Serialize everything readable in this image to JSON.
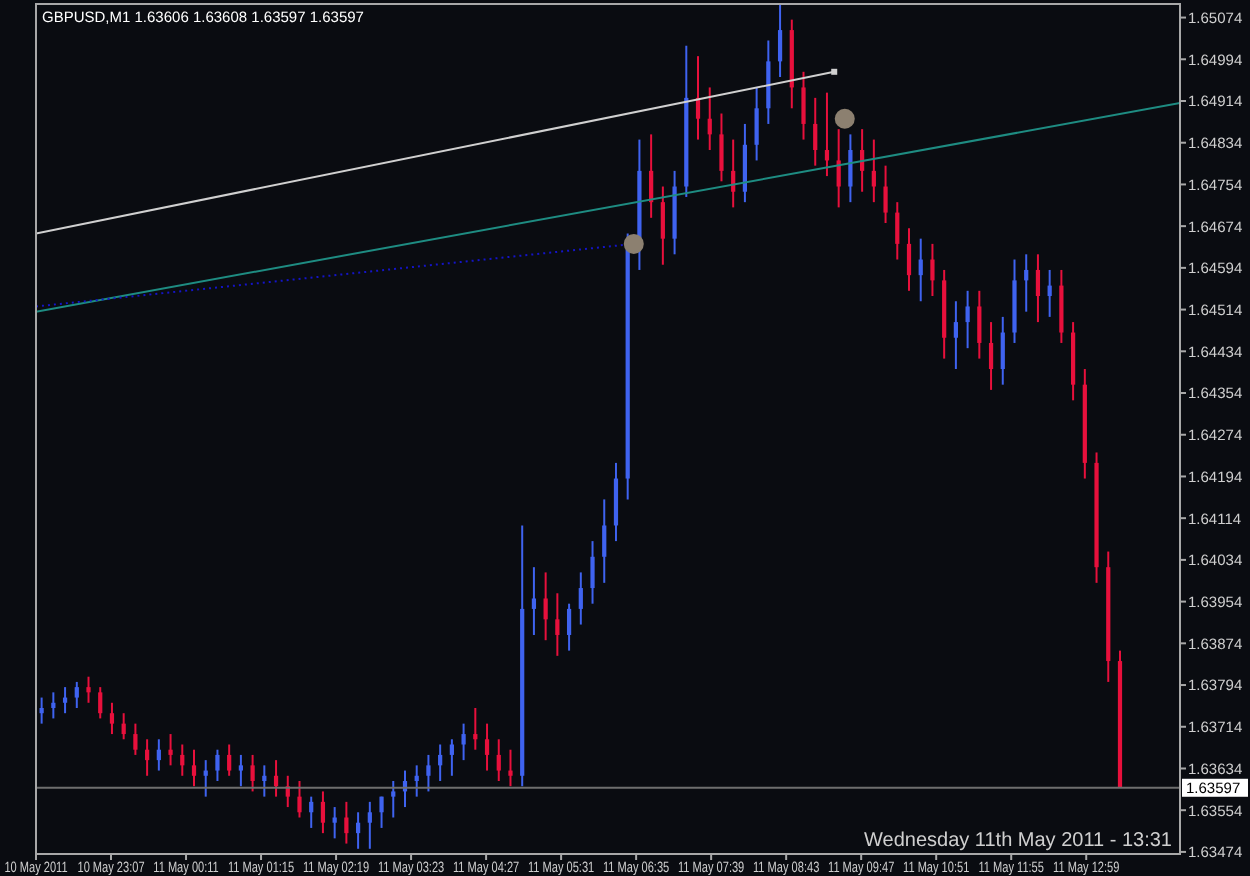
{
  "chart_data": {
    "type": "candlestick",
    "title": "GBPUSD,M1 1.63606 1.63608 1.63597 1.63597",
    "annotations": [
      "Wednesday 11th May 2011 - 13:31",
      "10 May 2011"
    ],
    "x": [
      "2011-05-10T22:08",
      "2011-05-10T22:18",
      "2011-05-10T22:28",
      "2011-05-10T22:38",
      "2011-05-10T22:48",
      "2011-05-10T22:58",
      "2011-05-10T23:08",
      "2011-05-10T23:18",
      "2011-05-10T23:28",
      "2011-05-10T23:38",
      "2011-05-10T23:48",
      "2011-05-10T23:58",
      "2011-05-11T00:08",
      "2011-05-11T00:18",
      "2011-05-11T00:28",
      "2011-05-11T00:38",
      "2011-05-11T00:48",
      "2011-05-11T00:58",
      "2011-05-11T01:08",
      "2011-05-11T01:18",
      "2011-05-11T01:28",
      "2011-05-11T01:38",
      "2011-05-11T01:48",
      "2011-05-11T01:58",
      "2011-05-11T02:08",
      "2011-05-11T02:18",
      "2011-05-11T02:28",
      "2011-05-11T02:38",
      "2011-05-11T02:48",
      "2011-05-11T02:58",
      "2011-05-11T03:08",
      "2011-05-11T03:18",
      "2011-05-11T03:28",
      "2011-05-11T03:38",
      "2011-05-11T03:48",
      "2011-05-11T03:58",
      "2011-05-11T04:08",
      "2011-05-11T04:18",
      "2011-05-11T04:28",
      "2011-05-11T04:38",
      "2011-05-11T04:48",
      "2011-05-11T04:58",
      "2011-05-11T05:08",
      "2011-05-11T05:18",
      "2011-05-11T05:28",
      "2011-05-11T05:38",
      "2011-05-11T05:48",
      "2011-05-11T05:58",
      "2011-05-11T06:08",
      "2011-05-11T06:18",
      "2011-05-11T06:28",
      "2011-05-11T06:38",
      "2011-05-11T06:48",
      "2011-05-11T06:58",
      "2011-05-11T07:08",
      "2011-05-11T07:18",
      "2011-05-11T07:28",
      "2011-05-11T07:38",
      "2011-05-11T07:48",
      "2011-05-11T07:58",
      "2011-05-11T08:08",
      "2011-05-11T08:18",
      "2011-05-11T08:28",
      "2011-05-11T08:38",
      "2011-05-11T08:48",
      "2011-05-11T08:58",
      "2011-05-11T09:08",
      "2011-05-11T09:18",
      "2011-05-11T09:28",
      "2011-05-11T09:38",
      "2011-05-11T09:48",
      "2011-05-11T09:58",
      "2011-05-11T10:08",
      "2011-05-11T10:18",
      "2011-05-11T10:28",
      "2011-05-11T10:38",
      "2011-05-11T10:48",
      "2011-05-11T10:58",
      "2011-05-11T11:08",
      "2011-05-11T11:18",
      "2011-05-11T11:28",
      "2011-05-11T11:38",
      "2011-05-11T11:48",
      "2011-05-11T11:58",
      "2011-05-11T12:08",
      "2011-05-11T12:18",
      "2011-05-11T12:28",
      "2011-05-11T12:38",
      "2011-05-11T12:48",
      "2011-05-11T12:58",
      "2011-05-11T13:08",
      "2011-05-11T13:18",
      "2011-05-11T13:28"
    ],
    "ohlc": [
      [
        1.6374,
        1.6377,
        1.6372,
        1.6375
      ],
      [
        1.6375,
        1.6378,
        1.6373,
        1.6376
      ],
      [
        1.6376,
        1.6379,
        1.6374,
        1.6377
      ],
      [
        1.6377,
        1.638,
        1.6375,
        1.6379
      ],
      [
        1.6379,
        1.6381,
        1.6376,
        1.6378
      ],
      [
        1.6378,
        1.6379,
        1.6373,
        1.6374
      ],
      [
        1.6374,
        1.6376,
        1.637,
        1.6372
      ],
      [
        1.6372,
        1.6374,
        1.6369,
        1.637
      ],
      [
        1.637,
        1.6372,
        1.6366,
        1.6367
      ],
      [
        1.6367,
        1.6369,
        1.6362,
        1.6365
      ],
      [
        1.6365,
        1.6369,
        1.6363,
        1.6367
      ],
      [
        1.6367,
        1.637,
        1.6364,
        1.6366
      ],
      [
        1.6366,
        1.6368,
        1.6362,
        1.6364
      ],
      [
        1.6364,
        1.6367,
        1.636,
        1.6362
      ],
      [
        1.6362,
        1.6365,
        1.6358,
        1.6363
      ],
      [
        1.6363,
        1.6367,
        1.6361,
        1.6366
      ],
      [
        1.6366,
        1.6368,
        1.6362,
        1.6363
      ],
      [
        1.6363,
        1.6366,
        1.636,
        1.6364
      ],
      [
        1.6364,
        1.6366,
        1.6359,
        1.6361
      ],
      [
        1.6361,
        1.6364,
        1.6358,
        1.6362
      ],
      [
        1.6362,
        1.6365,
        1.6358,
        1.636
      ],
      [
        1.636,
        1.6362,
        1.6356,
        1.6358
      ],
      [
        1.6358,
        1.6361,
        1.6354,
        1.6355
      ],
      [
        1.6355,
        1.6358,
        1.6352,
        1.6357
      ],
      [
        1.6357,
        1.6359,
        1.6351,
        1.6353
      ],
      [
        1.6353,
        1.6356,
        1.635,
        1.6354
      ],
      [
        1.6354,
        1.6357,
        1.6349,
        1.6351
      ],
      [
        1.6351,
        1.6355,
        1.6348,
        1.6353
      ],
      [
        1.6353,
        1.6357,
        1.6348,
        1.6355
      ],
      [
        1.6355,
        1.6358,
        1.6352,
        1.6358
      ],
      [
        1.6358,
        1.6361,
        1.6354,
        1.6359
      ],
      [
        1.6359,
        1.6363,
        1.6356,
        1.6361
      ],
      [
        1.6361,
        1.6364,
        1.6358,
        1.6362
      ],
      [
        1.6362,
        1.6366,
        1.6359,
        1.6364
      ],
      [
        1.6364,
        1.6368,
        1.6361,
        1.6366
      ],
      [
        1.6366,
        1.6369,
        1.6362,
        1.6368
      ],
      [
        1.6368,
        1.6372,
        1.6365,
        1.637
      ],
      [
        1.637,
        1.6375,
        1.6367,
        1.6369
      ],
      [
        1.6369,
        1.6372,
        1.6363,
        1.6366
      ],
      [
        1.6366,
        1.6369,
        1.6361,
        1.6363
      ],
      [
        1.6363,
        1.6367,
        1.636,
        1.6362
      ],
      [
        1.6362,
        1.641,
        1.636,
        1.6394
      ],
      [
        1.6394,
        1.6402,
        1.6389,
        1.6396
      ],
      [
        1.6396,
        1.6401,
        1.6388,
        1.6392
      ],
      [
        1.6392,
        1.6397,
        1.6385,
        1.6389
      ],
      [
        1.6389,
        1.6395,
        1.6386,
        1.6394
      ],
      [
        1.6394,
        1.6401,
        1.6391,
        1.6398
      ],
      [
        1.6398,
        1.6407,
        1.6395,
        1.6404
      ],
      [
        1.6404,
        1.6415,
        1.6399,
        1.641
      ],
      [
        1.641,
        1.6422,
        1.6407,
        1.6419
      ],
      [
        1.6419,
        1.6466,
        1.6415,
        1.6463
      ],
      [
        1.6463,
        1.6484,
        1.6459,
        1.6478
      ],
      [
        1.6478,
        1.6485,
        1.6469,
        1.6472
      ],
      [
        1.6472,
        1.6475,
        1.646,
        1.6465
      ],
      [
        1.6465,
        1.6478,
        1.6462,
        1.6475
      ],
      [
        1.6475,
        1.6502,
        1.6473,
        1.6492
      ],
      [
        1.6492,
        1.65,
        1.6484,
        1.6488
      ],
      [
        1.6488,
        1.6494,
        1.6482,
        1.6485
      ],
      [
        1.6485,
        1.6489,
        1.6476,
        1.6478
      ],
      [
        1.6478,
        1.6484,
        1.6471,
        1.6474
      ],
      [
        1.6474,
        1.6487,
        1.6472,
        1.6483
      ],
      [
        1.6483,
        1.6494,
        1.648,
        1.649
      ],
      [
        1.649,
        1.6503,
        1.6487,
        1.6499
      ],
      [
        1.6499,
        1.651,
        1.6496,
        1.6505
      ],
      [
        1.6505,
        1.6507,
        1.649,
        1.6494
      ],
      [
        1.6494,
        1.6497,
        1.6484,
        1.6487
      ],
      [
        1.6487,
        1.6492,
        1.6479,
        1.6482
      ],
      [
        1.6482,
        1.6493,
        1.6477,
        1.648
      ],
      [
        1.648,
        1.6486,
        1.6471,
        1.6475
      ],
      [
        1.6475,
        1.6485,
        1.6472,
        1.6482
      ],
      [
        1.6482,
        1.6486,
        1.6474,
        1.6478
      ],
      [
        1.6478,
        1.6484,
        1.6472,
        1.6475
      ],
      [
        1.6475,
        1.6479,
        1.6468,
        1.647
      ],
      [
        1.647,
        1.6472,
        1.6461,
        1.6464
      ],
      [
        1.6464,
        1.6467,
        1.6455,
        1.6458
      ],
      [
        1.6458,
        1.6465,
        1.6453,
        1.6461
      ],
      [
        1.6461,
        1.6464,
        1.6454,
        1.6457
      ],
      [
        1.6457,
        1.6459,
        1.6442,
        1.6446
      ],
      [
        1.6446,
        1.6453,
        1.644,
        1.6449
      ],
      [
        1.6449,
        1.6455,
        1.6444,
        1.6452
      ],
      [
        1.6452,
        1.6455,
        1.6442,
        1.6445
      ],
      [
        1.6445,
        1.6449,
        1.6436,
        1.644
      ],
      [
        1.644,
        1.645,
        1.6437,
        1.6447
      ],
      [
        1.6447,
        1.6461,
        1.6445,
        1.6457
      ],
      [
        1.6457,
        1.6462,
        1.6451,
        1.6459
      ],
      [
        1.6459,
        1.6462,
        1.6449,
        1.6454
      ],
      [
        1.6454,
        1.6459,
        1.645,
        1.6456
      ],
      [
        1.6456,
        1.6459,
        1.6445,
        1.6447
      ],
      [
        1.6447,
        1.6449,
        1.6434,
        1.6437
      ],
      [
        1.6437,
        1.644,
        1.6419,
        1.6422
      ],
      [
        1.6422,
        1.6424,
        1.6399,
        1.6402
      ],
      [
        1.6402,
        1.6405,
        1.638,
        1.6384
      ],
      [
        1.6384,
        1.6386,
        1.63597,
        1.63597
      ]
    ],
    "colors": [
      "#3f63f0",
      "#3f63f0",
      "#3f63f0",
      "#3f63f0",
      "#e8103c",
      "#e8103c",
      "#e8103c",
      "#e8103c",
      "#e8103c",
      "#e8103c",
      "#3f63f0",
      "#e8103c",
      "#e8103c",
      "#e8103c",
      "#3f63f0",
      "#3f63f0",
      "#e8103c",
      "#3f63f0",
      "#e8103c",
      "#3f63f0",
      "#e8103c",
      "#e8103c",
      "#e8103c",
      "#3f63f0",
      "#e8103c",
      "#3f63f0",
      "#e8103c",
      "#3f63f0",
      "#3f63f0",
      "#3f63f0",
      "#3f63f0",
      "#3f63f0",
      "#3f63f0",
      "#3f63f0",
      "#3f63f0",
      "#3f63f0",
      "#3f63f0",
      "#e8103c",
      "#e8103c",
      "#e8103c",
      "#e8103c",
      "#3f63f0",
      "#3f63f0",
      "#e8103c",
      "#e8103c",
      "#3f63f0",
      "#3f63f0",
      "#3f63f0",
      "#3f63f0",
      "#3f63f0",
      "#3f63f0",
      "#3f63f0",
      "#e8103c",
      "#e8103c",
      "#3f63f0",
      "#3f63f0",
      "#e8103c",
      "#e8103c",
      "#e8103c",
      "#e8103c",
      "#3f63f0",
      "#3f63f0",
      "#3f63f0",
      "#3f63f0",
      "#e8103c",
      "#e8103c",
      "#e8103c",
      "#e8103c",
      "#e8103c",
      "#3f63f0",
      "#e8103c",
      "#e8103c",
      "#e8103c",
      "#e8103c",
      "#e8103c",
      "#3f63f0",
      "#e8103c",
      "#e8103c",
      "#3f63f0",
      "#3f63f0",
      "#e8103c",
      "#e8103c",
      "#3f63f0",
      "#3f63f0",
      "#3f63f0",
      "#e8103c",
      "#3f63f0",
      "#e8103c",
      "#e8103c",
      "#e8103c",
      "#e8103c",
      "#e8103c",
      "#e8103c"
    ],
    "series": [
      {
        "type": "line",
        "x": [
          "2011-05-10T22:03",
          "2011-05-11T09:24"
        ],
        "values": [
          1.6466,
          1.6497
        ],
        "color": "#d0d0d0",
        "line_style": "solid"
      },
      {
        "type": "line",
        "x": [
          "2011-05-10T22:03",
          "2011-05-11T14:19"
        ],
        "values": [
          1.6451,
          1.6491
        ],
        "color": "#1e8c82",
        "line_style": "solid"
      },
      {
        "type": "line",
        "x": [
          "2011-05-10T22:03",
          "2011-05-11T06:33"
        ],
        "values": [
          1.6452,
          1.6464
        ],
        "color": "#1414c8",
        "line_style": "dotted"
      },
      {
        "type": "scatter",
        "x": [
          "2011-05-11T06:33",
          "2011-05-11T09:33"
        ],
        "values": [
          1.6464,
          1.6488
        ],
        "color": "#8c8070",
        "marker": "circle"
      }
    ],
    "ref_lines": [
      {
        "axis": "y",
        "value": 1.63597,
        "label": "1.63597",
        "color": "#6e6e6e"
      }
    ],
    "xlim": [
      "2011-05-10T22:03",
      "2011-05-11T14:19"
    ],
    "xticks": [
      {
        "value": "2011-05-10T22:03",
        "label": null
      },
      {
        "value": "2011-05-10T23:07",
        "label": "10 May 23:07"
      },
      {
        "value": "2011-05-11T00:11",
        "label": "11 May 00:11"
      },
      {
        "value": "2011-05-11T01:15",
        "label": "11 May 01:15"
      },
      {
        "value": "2011-05-11T02:19",
        "label": "11 May 02:19"
      },
      {
        "value": "2011-05-11T03:23",
        "label": "11 May 03:23"
      },
      {
        "value": "2011-05-11T04:27",
        "label": "11 May 04:27"
      },
      {
        "value": "2011-05-11T05:31",
        "label": "11 May 05:31"
      },
      {
        "value": "2011-05-11T06:35",
        "label": "11 May 06:35"
      },
      {
        "value": "2011-05-11T07:39",
        "label": "11 May 07:39"
      },
      {
        "value": "2011-05-11T08:43",
        "label": "11 May 08:43"
      },
      {
        "value": "2011-05-11T09:47",
        "label": "11 May 09:47"
      },
      {
        "value": "2011-05-11T10:51",
        "label": "11 May 10:51"
      },
      {
        "value": "2011-05-11T11:55",
        "label": "11 May 11:55"
      },
      {
        "value": "2011-05-11T12:59",
        "label": "11 May 12:59"
      }
    ],
    "ylim": [
      1.6347,
      1.651
    ],
    "yticks": [
      1.63474,
      1.63554,
      1.63634,
      1.63714,
      1.63794,
      1.63874,
      1.63954,
      1.64034,
      1.64114,
      1.64194,
      1.64274,
      1.64354,
      1.64434,
      1.64514,
      1.64594,
      1.64674,
      1.64754,
      1.64834,
      1.64914,
      1.64994,
      1.65074
    ]
  }
}
